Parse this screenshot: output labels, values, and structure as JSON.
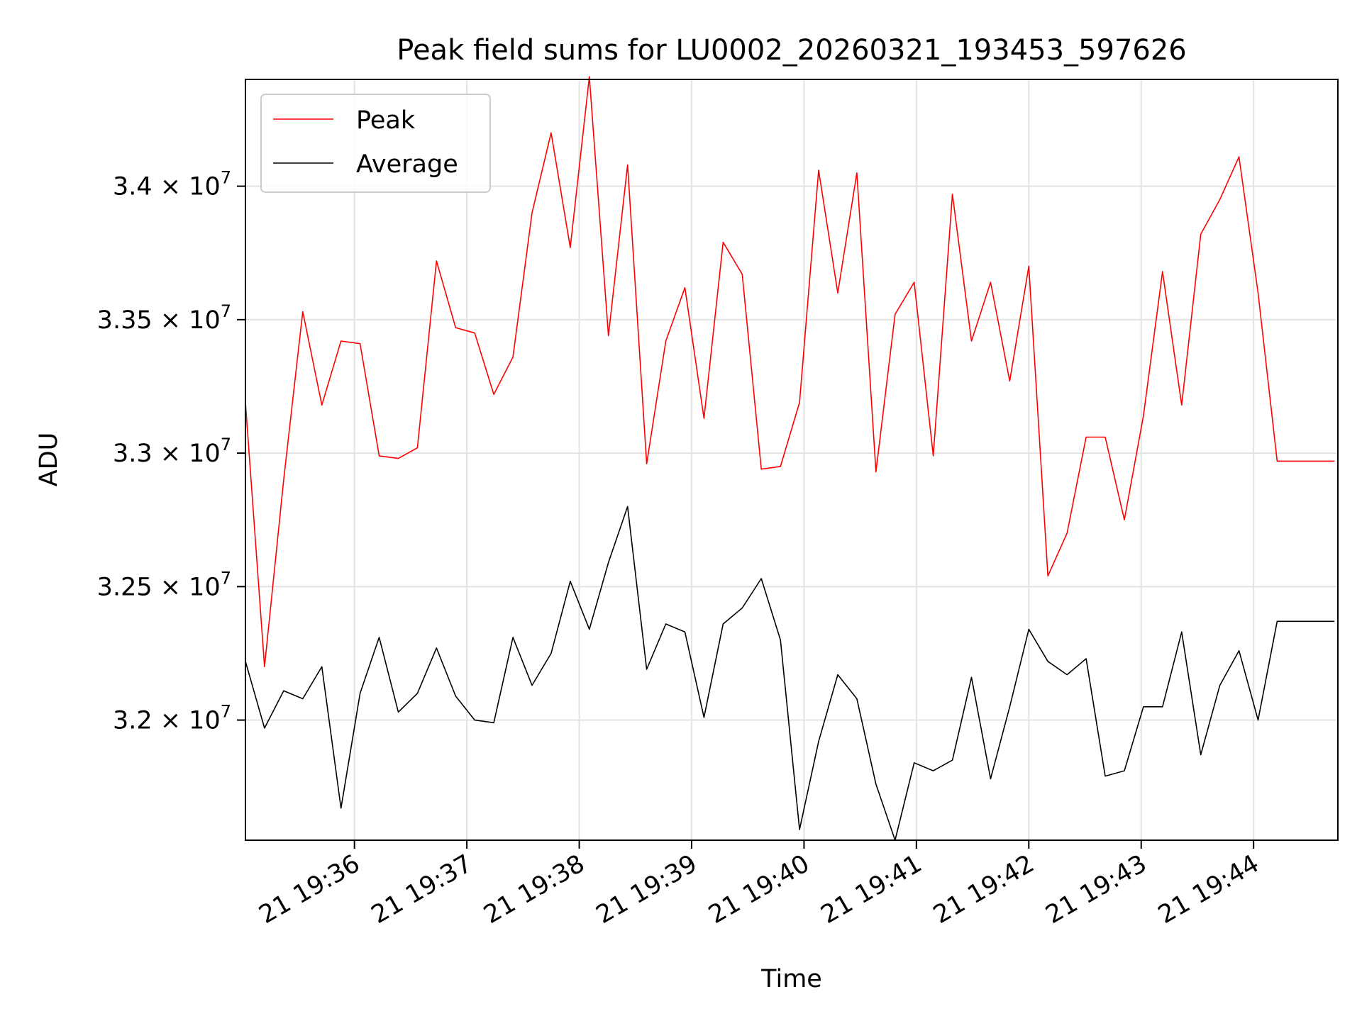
{
  "chart_data": {
    "type": "line",
    "title": "Peak field sums for LU0002_20260321_193453_597626",
    "xlabel": "Time",
    "ylabel": "ADU",
    "grid": true,
    "legend_position": "top-left",
    "x_start_minutes": 35.03,
    "x_step_minutes": 0.17,
    "xlim": [
      35.03,
      44.75
    ],
    "ylim": [
      31550000,
      34400000
    ],
    "x_ticks": [
      {
        "value": 36,
        "label": "21 19:36"
      },
      {
        "value": 37,
        "label": "21 19:37"
      },
      {
        "value": 38,
        "label": "21 19:38"
      },
      {
        "value": 39,
        "label": "21 19:39"
      },
      {
        "value": 40,
        "label": "21 19:40"
      },
      {
        "value": 41,
        "label": "21 19:41"
      },
      {
        "value": 42,
        "label": "21 19:42"
      },
      {
        "value": 43,
        "label": "21 19:43"
      },
      {
        "value": 44,
        "label": "21 19:44"
      }
    ],
    "y_ticks": [
      {
        "value": 32000000,
        "mantissa": "3.2"
      },
      {
        "value": 32500000,
        "mantissa": "3.25"
      },
      {
        "value": 33000000,
        "mantissa": "3.3"
      },
      {
        "value": 33500000,
        "mantissa": "3.35"
      },
      {
        "value": 34000000,
        "mantissa": "3.4"
      }
    ],
    "y_tick_suffix": "× 10",
    "y_tick_exponent": "7",
    "series": [
      {
        "name": "Peak",
        "color": "#ff0000",
        "values": [
          33190000,
          32200000,
          32900000,
          33530000,
          33180000,
          33420000,
          33410000,
          32990000,
          32980000,
          33020000,
          33720000,
          33470000,
          33450000,
          33220000,
          33360000,
          33900000,
          34200000,
          33770000,
          34410000,
          33440000,
          34080000,
          32960000,
          33420000,
          33620000,
          33130000,
          33790000,
          33670000,
          32940000,
          32950000,
          33190000,
          34060000,
          33600000,
          34050000,
          32930000,
          33520000,
          33640000,
          32990000,
          33970000,
          33420000,
          33640000,
          33270000,
          33700000,
          32540000,
          32700000,
          33060000,
          33060000,
          32750000,
          33140000,
          33680000,
          33180000,
          33820000,
          33950000,
          34110000,
          33600000,
          32970000,
          32970000,
          32970000,
          32970000
        ]
      },
      {
        "name": "Average",
        "color": "#000000",
        "values": [
          32220000,
          31970000,
          32110000,
          32080000,
          32200000,
          31670000,
          32100000,
          32310000,
          32030000,
          32100000,
          32270000,
          32090000,
          32000000,
          31990000,
          32310000,
          32130000,
          32250000,
          32520000,
          32340000,
          32590000,
          32800000,
          32190000,
          32360000,
          32330000,
          32010000,
          32360000,
          32420000,
          32530000,
          32300000,
          31590000,
          31920000,
          32170000,
          32080000,
          31760000,
          31550000,
          31840000,
          31810000,
          31850000,
          32160000,
          31780000,
          32050000,
          32340000,
          32220000,
          32170000,
          32230000,
          31790000,
          31810000,
          32050000,
          32050000,
          32330000,
          31870000,
          32130000,
          32260000,
          32000000,
          32370000,
          32370000,
          32370000,
          32370000
        ]
      }
    ]
  }
}
